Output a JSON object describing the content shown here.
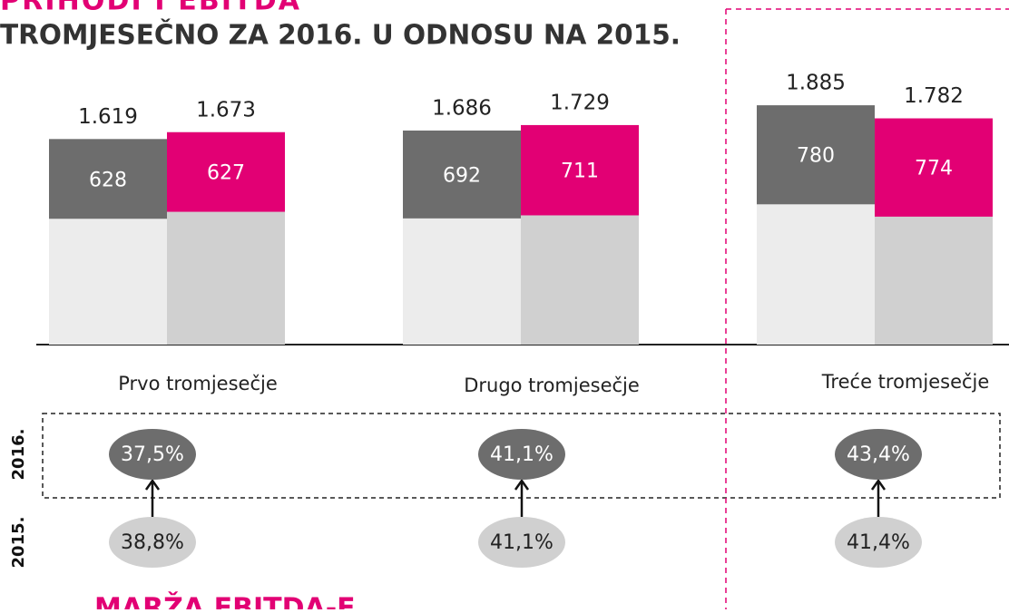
{
  "chart_data": {
    "type": "bar",
    "heading": "PRIHODI I EBITDA",
    "title": "TROMJESEČNO ZA 2016. U ODNOSU NA 2015.",
    "footer": "MARŽA EBITDA-E",
    "categories": [
      "Prvo tromjesečje",
      "Drugo tromjesečje",
      "Treće tromjesečje"
    ],
    "ylim": [
      0,
      2700
    ],
    "series": [
      {
        "name": "2015.",
        "color": "#6d6d6d",
        "base_color": "#ececec",
        "values": [
          1619,
          1686,
          1885
        ],
        "value_labels": [
          "1.619",
          "1.686",
          "1.885"
        ],
        "ebitda": [
          628,
          692,
          780
        ],
        "margins": [
          38.8,
          41.1,
          41.4
        ],
        "margin_labels": [
          "38,8%",
          "41,1%",
          "41,4%"
        ],
        "margin_color": "#d0d0d0"
      },
      {
        "name": "2016.",
        "color": "#e20074",
        "base_color": "#d0d0d0",
        "values": [
          1673,
          1729,
          1782
        ],
        "value_labels": [
          "1.673",
          "1.729",
          "1.782"
        ],
        "ebitda": [
          627,
          711,
          774
        ],
        "margins": [
          37.5,
          41.1,
          43.4
        ],
        "margin_labels": [
          "37,5%",
          "41,1%",
          "43,4%"
        ],
        "margin_color": "#6d6d6d"
      }
    ]
  }
}
